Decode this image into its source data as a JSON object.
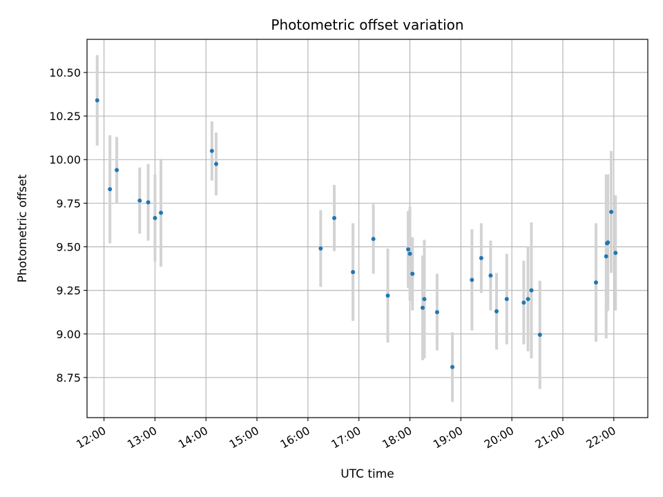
{
  "chart_data": {
    "type": "scatter",
    "title": "Photometric offset variation",
    "xlabel": "UTC time",
    "ylabel": "Photometric offset",
    "xlim": [
      "11:40",
      "22:40"
    ],
    "ylim": [
      8.52,
      10.69
    ],
    "x_ticks": [
      "12:00",
      "13:00",
      "14:00",
      "15:00",
      "16:00",
      "17:00",
      "18:00",
      "19:00",
      "20:00",
      "21:00",
      "22:00"
    ],
    "y_ticks": [
      "8.75",
      "9.00",
      "9.25",
      "9.50",
      "9.75",
      "10.00",
      "10.25",
      "10.50"
    ],
    "grid": true,
    "x_tick_rotation": "30",
    "colors": {
      "point": "#1f77b4",
      "errorbar": "#d3d3d3",
      "grid": "#b0b0b0"
    },
    "series": [
      {
        "points": [
          {
            "x": "11:52",
            "y": 10.34,
            "err": 0.26
          },
          {
            "x": "12:07",
            "y": 9.83,
            "err": 0.31
          },
          {
            "x": "12:15",
            "y": 9.94,
            "err": 0.19
          },
          {
            "x": "12:42",
            "y": 9.765,
            "err": 0.19
          },
          {
            "x": "12:52",
            "y": 9.755,
            "err": 0.22
          },
          {
            "x": "13:00",
            "y": 9.665,
            "err": 0.25
          },
          {
            "x": "13:07",
            "y": 9.695,
            "err": 0.31
          },
          {
            "x": "14:07",
            "y": 10.05,
            "err": 0.17
          },
          {
            "x": "14:12",
            "y": 9.975,
            "err": 0.18
          },
          {
            "x": "16:15",
            "y": 9.49,
            "err": 0.22
          },
          {
            "x": "16:31",
            "y": 9.665,
            "err": 0.19
          },
          {
            "x": "16:53",
            "y": 9.355,
            "err": 0.28
          },
          {
            "x": "17:17",
            "y": 9.545,
            "err": 0.2
          },
          {
            "x": "17:34",
            "y": 9.22,
            "err": 0.27
          },
          {
            "x": "17:58",
            "y": 9.485,
            "err": 0.22
          },
          {
            "x": "18:00",
            "y": 9.46,
            "err": 0.27
          },
          {
            "x": "18:03",
            "y": 9.345,
            "err": 0.21
          },
          {
            "x": "18:15",
            "y": 9.15,
            "err": 0.3
          },
          {
            "x": "18:17",
            "y": 9.2,
            "err": 0.34
          },
          {
            "x": "18:32",
            "y": 9.125,
            "err": 0.22
          },
          {
            "x": "18:50",
            "y": 8.81,
            "err": 0.2
          },
          {
            "x": "19:13",
            "y": 9.31,
            "err": 0.29
          },
          {
            "x": "19:24",
            "y": 9.435,
            "err": 0.2
          },
          {
            "x": "19:35",
            "y": 9.335,
            "err": 0.2
          },
          {
            "x": "19:42",
            "y": 9.13,
            "err": 0.22
          },
          {
            "x": "19:54",
            "y": 9.2,
            "err": 0.26
          },
          {
            "x": "20:14",
            "y": 9.18,
            "err": 0.24
          },
          {
            "x": "20:19",
            "y": 9.2,
            "err": 0.3
          },
          {
            "x": "20:23",
            "y": 9.25,
            "err": 0.39
          },
          {
            "x": "20:33",
            "y": 8.995,
            "err": 0.31
          },
          {
            "x": "21:39",
            "y": 9.295,
            "err": 0.34
          },
          {
            "x": "21:51",
            "y": 9.445,
            "err": 0.47
          },
          {
            "x": "21:52",
            "y": 9.52,
            "err": 0.39
          },
          {
            "x": "21:53",
            "y": 9.525,
            "err": 0.39
          },
          {
            "x": "21:57",
            "y": 9.7,
            "err": 0.35
          },
          {
            "x": "22:02",
            "y": 9.465,
            "err": 0.33
          }
        ]
      }
    ]
  }
}
